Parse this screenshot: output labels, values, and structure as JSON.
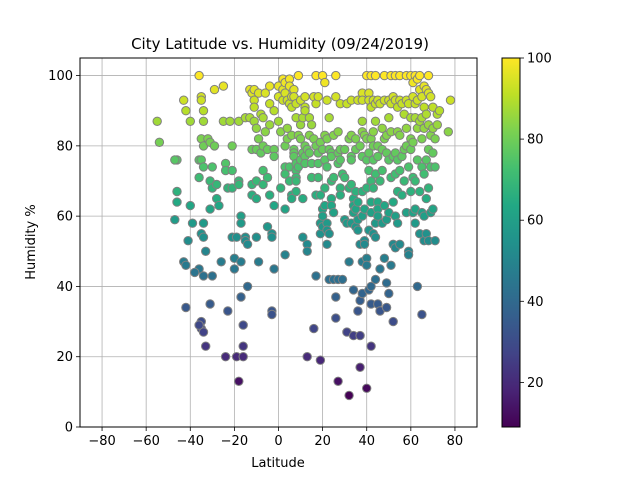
{
  "chart_data": {
    "type": "scatter",
    "title": "City Latitude vs. Humidity (09/24/2019)",
    "xlabel": "Latitude",
    "ylabel": "Humidity %",
    "xlim": [
      -90,
      90
    ],
    "ylim": [
      0,
      105
    ],
    "x_ticks": [
      "-80",
      "-60",
      "-40",
      "-20",
      "0",
      "20",
      "40",
      "60",
      "80"
    ],
    "y_ticks": [
      "0",
      "20",
      "40",
      "60",
      "80",
      "100"
    ],
    "grid": true,
    "colormap": "viridis",
    "colorbar": {
      "min": 9,
      "max": 100,
      "ticks": [
        "20",
        "40",
        "60",
        "80",
        "100"
      ]
    },
    "marker_edge_color": "#808080",
    "points": [
      [
        -54,
        81
      ],
      [
        -55,
        87
      ],
      [
        -46,
        76
      ],
      [
        -47,
        76
      ],
      [
        -46,
        67
      ],
      [
        -46,
        64
      ],
      [
        -47,
        59
      ],
      [
        -43,
        47
      ],
      [
        -42,
        46
      ],
      [
        -42,
        34
      ],
      [
        -41,
        53
      ],
      [
        -40,
        63
      ],
      [
        -39,
        58
      ],
      [
        -40,
        87
      ],
      [
        -43,
        93
      ],
      [
        -42,
        90
      ],
      [
        -36,
        100
      ],
      [
        -35,
        94
      ],
      [
        -35,
        93
      ],
      [
        -34,
        90
      ],
      [
        -34,
        87
      ],
      [
        -35,
        82
      ],
      [
        -34,
        80
      ],
      [
        -36,
        76
      ],
      [
        -35,
        76
      ],
      [
        -34,
        74
      ],
      [
        -36,
        71
      ],
      [
        -34,
        58
      ],
      [
        -35,
        55
      ],
      [
        -34,
        54
      ],
      [
        -33,
        50
      ],
      [
        -36,
        45
      ],
      [
        -34,
        43
      ],
      [
        -38,
        44
      ],
      [
        -35,
        28
      ],
      [
        -34,
        27
      ],
      [
        -33,
        23
      ],
      [
        -35,
        30
      ],
      [
        -36,
        29
      ],
      [
        -32,
        82
      ],
      [
        -31,
        81
      ],
      [
        -30,
        74
      ],
      [
        -31,
        70
      ],
      [
        -30,
        68
      ],
      [
        -31,
        62
      ],
      [
        -30,
        43
      ],
      [
        -31,
        35
      ],
      [
        -29,
        96
      ],
      [
        -29,
        80
      ],
      [
        -28,
        69
      ],
      [
        -28,
        65
      ],
      [
        -27,
        63
      ],
      [
        -26,
        47
      ],
      [
        -25,
        97
      ],
      [
        -25,
        87
      ],
      [
        -24,
        75
      ],
      [
        -24,
        73
      ],
      [
        -23,
        68
      ],
      [
        -23,
        33
      ],
      [
        -24,
        20
      ],
      [
        -22,
        87
      ],
      [
        -21,
        80
      ],
      [
        -21,
        73
      ],
      [
        -21,
        68
      ],
      [
        -21,
        54
      ],
      [
        -20,
        48
      ],
      [
        -20,
        45
      ],
      [
        -19,
        54
      ],
      [
        -19,
        20
      ],
      [
        -18,
        87
      ],
      [
        -18,
        70
      ],
      [
        -18,
        69
      ],
      [
        -18,
        13
      ],
      [
        -17,
        60
      ],
      [
        -17,
        58
      ],
      [
        -17,
        47
      ],
      [
        -17,
        37
      ],
      [
        -16,
        29
      ],
      [
        -16,
        23
      ],
      [
        -16,
        20
      ],
      [
        -15,
        88
      ],
      [
        -15,
        54
      ],
      [
        -15,
        53
      ],
      [
        -14,
        52
      ],
      [
        -14,
        40
      ],
      [
        -13,
        96
      ],
      [
        -13,
        88
      ],
      [
        -12,
        95
      ],
      [
        -12,
        79
      ],
      [
        -12,
        69
      ],
      [
        -12,
        66
      ],
      [
        -11,
        96
      ],
      [
        -11,
        93
      ],
      [
        -11,
        91
      ],
      [
        -11,
        87
      ],
      [
        -10,
        85
      ],
      [
        -10,
        79
      ],
      [
        -10,
        70
      ],
      [
        -10,
        65
      ],
      [
        -10,
        54
      ],
      [
        -9,
        95
      ],
      [
        -9,
        82
      ],
      [
        -9,
        47
      ],
      [
        -8,
        89
      ],
      [
        -8,
        78
      ],
      [
        -7,
        88
      ],
      [
        -7,
        80
      ],
      [
        -7,
        73
      ],
      [
        -7,
        69
      ],
      [
        -6,
        95
      ],
      [
        -6,
        84
      ],
      [
        -5,
        79
      ],
      [
        -5,
        71
      ],
      [
        -5,
        57
      ],
      [
        -4,
        97
      ],
      [
        -4,
        92
      ],
      [
        -4,
        86
      ],
      [
        -4,
        66
      ],
      [
        -3,
        55
      ],
      [
        -3,
        54
      ],
      [
        -3,
        33
      ],
      [
        -3,
        32
      ],
      [
        -2,
        90
      ],
      [
        -2,
        79
      ],
      [
        -2,
        77
      ],
      [
        -2,
        63
      ],
      [
        -2,
        45
      ],
      [
        0,
        97
      ],
      [
        0,
        94
      ],
      [
        0,
        87
      ],
      [
        1,
        84
      ],
      [
        1,
        68
      ],
      [
        2,
        99
      ],
      [
        2,
        96
      ],
      [
        2,
        93
      ],
      [
        3,
        98
      ],
      [
        3,
        95
      ],
      [
        3,
        80
      ],
      [
        3,
        74
      ],
      [
        3,
        72
      ],
      [
        3,
        62
      ],
      [
        3,
        49
      ],
      [
        4,
        93
      ],
      [
        4,
        85
      ],
      [
        4,
        82
      ],
      [
        5,
        99
      ],
      [
        5,
        97
      ],
      [
        5,
        92
      ],
      [
        5,
        74
      ],
      [
        5,
        70
      ],
      [
        6,
        94
      ],
      [
        6,
        91
      ],
      [
        6,
        83
      ],
      [
        6,
        66
      ],
      [
        6,
        65
      ],
      [
        7,
        96
      ],
      [
        7,
        94
      ],
      [
        7,
        79
      ],
      [
        7,
        78
      ],
      [
        7,
        77
      ],
      [
        8,
        92
      ],
      [
        8,
        88
      ],
      [
        8,
        75
      ],
      [
        8,
        73
      ],
      [
        8,
        71
      ],
      [
        8,
        70
      ],
      [
        8,
        67
      ],
      [
        9,
        100
      ],
      [
        9,
        83
      ],
      [
        9,
        74
      ],
      [
        10,
        93
      ],
      [
        10,
        86
      ],
      [
        10,
        82
      ],
      [
        10,
        76
      ],
      [
        11,
        88
      ],
      [
        11,
        78
      ],
      [
        11,
        65
      ],
      [
        11,
        54
      ],
      [
        12,
        94
      ],
      [
        12,
        91
      ],
      [
        12,
        90
      ],
      [
        12,
        80
      ],
      [
        12,
        77
      ],
      [
        12,
        75
      ],
      [
        13,
        79
      ],
      [
        13,
        20
      ],
      [
        13,
        52
      ],
      [
        13,
        50
      ],
      [
        14,
        88
      ],
      [
        14,
        83
      ],
      [
        14,
        78
      ],
      [
        15,
        86
      ],
      [
        15,
        75
      ],
      [
        15,
        71
      ],
      [
        16,
        94
      ],
      [
        16,
        82
      ],
      [
        16,
        28
      ],
      [
        17,
        100
      ],
      [
        17,
        92
      ],
      [
        17,
        80
      ],
      [
        17,
        66
      ],
      [
        17,
        43
      ],
      [
        18,
        94
      ],
      [
        18,
        78
      ],
      [
        18,
        75
      ],
      [
        18,
        71
      ],
      [
        19,
        81
      ],
      [
        19,
        66
      ],
      [
        19,
        58
      ],
      [
        19,
        55
      ],
      [
        19,
        19
      ],
      [
        20,
        100
      ],
      [
        20,
        79
      ],
      [
        20,
        62
      ],
      [
        20,
        60
      ],
      [
        20,
        57
      ],
      [
        21,
        98
      ],
      [
        21,
        83
      ],
      [
        21,
        76
      ],
      [
        21,
        68
      ],
      [
        21,
        63
      ],
      [
        22,
        93
      ],
      [
        22,
        82
      ],
      [
        22,
        74
      ],
      [
        22,
        58
      ],
      [
        22,
        56
      ],
      [
        22,
        52
      ],
      [
        23,
        88
      ],
      [
        23,
        79
      ],
      [
        23,
        55
      ],
      [
        23,
        42
      ],
      [
        24,
        78
      ],
      [
        24,
        77
      ],
      [
        24,
        70
      ],
      [
        24,
        65
      ],
      [
        24,
        63
      ],
      [
        25,
        83
      ],
      [
        25,
        71
      ],
      [
        25,
        61
      ],
      [
        25,
        42
      ],
      [
        26,
        94
      ],
      [
        26,
        100
      ],
      [
        26,
        37
      ],
      [
        26,
        31
      ],
      [
        27,
        84
      ],
      [
        27,
        78
      ],
      [
        27,
        75
      ],
      [
        27,
        42
      ],
      [
        27,
        13
      ],
      [
        28,
        92
      ],
      [
        28,
        79
      ],
      [
        28,
        76
      ],
      [
        28,
        68
      ],
      [
        28,
        66
      ],
      [
        29,
        72
      ],
      [
        29,
        42
      ],
      [
        30,
        79
      ],
      [
        30,
        71
      ],
      [
        30,
        59
      ],
      [
        31,
        92
      ],
      [
        31,
        58
      ],
      [
        31,
        27
      ],
      [
        32,
        82
      ],
      [
        32,
        68
      ],
      [
        32,
        47
      ],
      [
        32,
        9
      ],
      [
        33,
        93
      ],
      [
        33,
        83
      ],
      [
        33,
        77
      ],
      [
        33,
        76
      ],
      [
        33,
        69
      ],
      [
        33,
        58
      ],
      [
        34,
        65
      ],
      [
        34,
        63
      ],
      [
        34,
        61
      ],
      [
        34,
        26
      ],
      [
        34,
        39
      ],
      [
        35,
        82
      ],
      [
        35,
        79
      ],
      [
        35,
        67
      ],
      [
        35,
        62
      ],
      [
        35,
        57
      ],
      [
        36,
        93
      ],
      [
        36,
        64
      ],
      [
        36,
        59
      ],
      [
        36,
        56
      ],
      [
        36,
        33
      ],
      [
        37,
        80
      ],
      [
        37,
        52
      ],
      [
        37,
        36
      ],
      [
        37,
        26
      ],
      [
        37,
        17
      ],
      [
        38,
        95
      ],
      [
        38,
        93
      ],
      [
        38,
        87
      ],
      [
        38,
        84
      ],
      [
        38,
        77
      ],
      [
        38,
        67
      ],
      [
        38,
        60
      ],
      [
        38,
        47
      ],
      [
        38,
        38
      ],
      [
        39,
        83
      ],
      [
        39,
        62
      ],
      [
        39,
        53
      ],
      [
        39,
        52
      ],
      [
        40,
        100
      ],
      [
        40,
        82
      ],
      [
        40,
        76
      ],
      [
        40,
        68
      ],
      [
        40,
        48
      ],
      [
        40,
        46
      ],
      [
        40,
        11
      ],
      [
        41,
        95
      ],
      [
        41,
        93
      ],
      [
        41,
        78
      ],
      [
        41,
        73
      ],
      [
        41,
        56
      ],
      [
        41,
        39
      ],
      [
        42,
        100
      ],
      [
        42,
        91
      ],
      [
        42,
        82
      ],
      [
        42,
        70
      ],
      [
        42,
        64
      ],
      [
        42,
        61
      ],
      [
        42,
        40
      ],
      [
        42,
        35
      ],
      [
        42,
        23
      ],
      [
        43,
        93
      ],
      [
        43,
        84
      ],
      [
        43,
        80
      ],
      [
        43,
        76
      ],
      [
        43,
        68
      ],
      [
        43,
        55
      ],
      [
        44,
        100
      ],
      [
        44,
        92
      ],
      [
        44,
        87
      ],
      [
        44,
        72
      ],
      [
        44,
        58
      ],
      [
        44,
        54
      ],
      [
        44,
        42
      ],
      [
        45,
        93
      ],
      [
        45,
        80
      ],
      [
        45,
        77
      ],
      [
        45,
        64
      ],
      [
        45,
        62
      ],
      [
        45,
        60
      ],
      [
        45,
        35
      ],
      [
        46,
        92
      ],
      [
        46,
        70
      ],
      [
        46,
        45
      ],
      [
        46,
        33
      ],
      [
        47,
        85
      ],
      [
        47,
        79
      ],
      [
        47,
        73
      ],
      [
        47,
        58
      ],
      [
        48,
        100
      ],
      [
        48,
        93
      ],
      [
        48,
        82
      ],
      [
        48,
        63
      ],
      [
        48,
        48
      ],
      [
        49,
        83
      ],
      [
        49,
        78
      ],
      [
        49,
        59
      ],
      [
        49,
        41
      ],
      [
        49,
        34
      ],
      [
        50,
        93
      ],
      [
        50,
        88
      ],
      [
        50,
        76
      ],
      [
        50,
        61
      ],
      [
        50,
        38
      ],
      [
        51,
        100
      ],
      [
        51,
        92
      ],
      [
        51,
        84
      ],
      [
        51,
        71
      ],
      [
        51,
        46
      ],
      [
        52,
        94
      ],
      [
        52,
        77
      ],
      [
        52,
        64
      ],
      [
        52,
        52
      ],
      [
        52,
        30
      ],
      [
        53,
        100
      ],
      [
        53,
        93
      ],
      [
        53,
        78
      ],
      [
        53,
        72
      ],
      [
        53,
        60
      ],
      [
        53,
        51
      ],
      [
        54,
        91
      ],
      [
        54,
        84
      ],
      [
        54,
        76
      ],
      [
        54,
        67
      ],
      [
        54,
        58
      ],
      [
        55,
        100
      ],
      [
        55,
        93
      ],
      [
        55,
        83
      ],
      [
        55,
        73
      ],
      [
        55,
        52
      ],
      [
        56,
        92
      ],
      [
        56,
        77
      ],
      [
        56,
        66
      ],
      [
        57,
        89
      ],
      [
        57,
        79
      ],
      [
        57,
        70
      ],
      [
        58,
        100
      ],
      [
        58,
        93
      ],
      [
        58,
        85
      ],
      [
        58,
        80
      ],
      [
        58,
        61
      ],
      [
        59,
        92
      ],
      [
        59,
        74
      ],
      [
        59,
        50
      ],
      [
        59,
        49
      ],
      [
        60,
        100
      ],
      [
        60,
        88
      ],
      [
        60,
        82
      ],
      [
        60,
        79
      ],
      [
        60,
        67
      ],
      [
        61,
        98
      ],
      [
        61,
        94
      ],
      [
        61,
        81
      ],
      [
        61,
        71
      ],
      [
        61,
        61
      ],
      [
        62,
        100
      ],
      [
        62,
        92
      ],
      [
        62,
        88
      ],
      [
        62,
        70
      ],
      [
        62,
        62
      ],
      [
        62,
        58
      ],
      [
        63,
        99
      ],
      [
        63,
        93
      ],
      [
        63,
        85
      ],
      [
        63,
        76
      ],
      [
        63,
        40
      ],
      [
        64,
        100
      ],
      [
        64,
        96
      ],
      [
        64,
        87
      ],
      [
        64,
        67
      ],
      [
        64,
        55
      ],
      [
        65,
        94
      ],
      [
        65,
        88
      ],
      [
        65,
        82
      ],
      [
        65,
        74
      ],
      [
        65,
        61
      ],
      [
        65,
        32
      ],
      [
        66,
        97
      ],
      [
        66,
        91
      ],
      [
        66,
        85
      ],
      [
        66,
        72
      ],
      [
        66,
        60
      ],
      [
        66,
        53
      ],
      [
        67,
        96
      ],
      [
        67,
        89
      ],
      [
        67,
        76
      ],
      [
        67,
        65
      ],
      [
        67,
        55
      ],
      [
        68,
        100
      ],
      [
        68,
        95
      ],
      [
        68,
        86
      ],
      [
        68,
        79
      ],
      [
        68,
        68
      ],
      [
        68,
        53
      ],
      [
        69,
        94
      ],
      [
        69,
        83
      ],
      [
        69,
        74
      ],
      [
        69,
        61
      ],
      [
        70,
        91
      ],
      [
        70,
        85
      ],
      [
        70,
        78
      ],
      [
        70,
        62
      ],
      [
        71,
        82
      ],
      [
        71,
        74
      ],
      [
        71,
        53
      ],
      [
        72,
        89
      ],
      [
        72,
        86
      ],
      [
        73,
        90
      ],
      [
        77,
        84
      ],
      [
        78,
        93
      ]
    ]
  }
}
